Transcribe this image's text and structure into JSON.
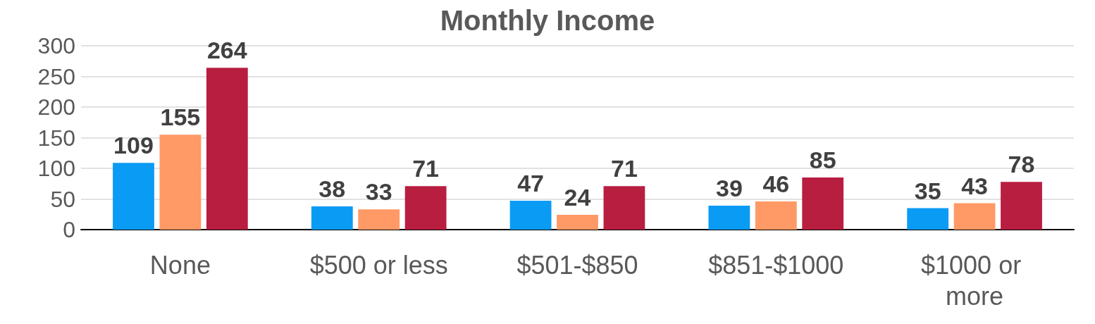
{
  "chart_data": {
    "type": "bar",
    "title": "Monthly Income",
    "categories": [
      "None",
      "$500 or less",
      "$501-$850",
      "$851-$1000",
      "$1000 or more"
    ],
    "series": [
      {
        "color": "#0a9bf5",
        "values": [
          109,
          38,
          47,
          39,
          35
        ]
      },
      {
        "color": "#ff9966",
        "values": [
          155,
          33,
          24,
          46,
          43
        ]
      },
      {
        "color": "#b81e40",
        "values": [
          264,
          71,
          71,
          85,
          78
        ]
      }
    ],
    "ylim": [
      0,
      300
    ],
    "yticks": [
      0,
      50,
      100,
      150,
      200,
      250,
      300
    ],
    "grid": "y",
    "data_labels": true
  }
}
